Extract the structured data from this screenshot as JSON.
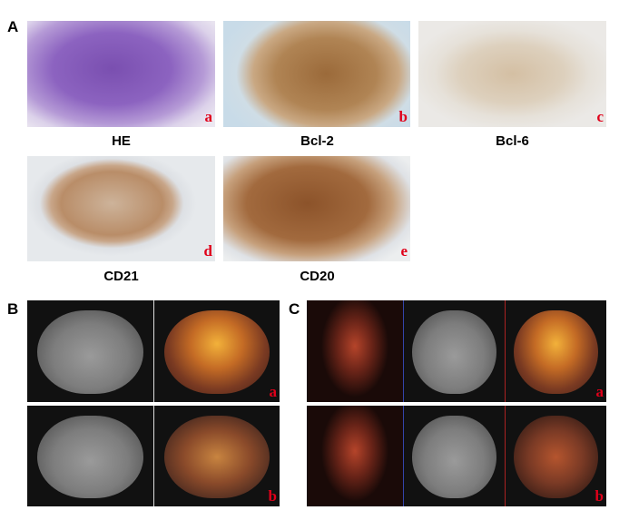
{
  "panels": {
    "A": {
      "label": "A",
      "images": [
        {
          "tag": "a",
          "caption": "HE"
        },
        {
          "tag": "b",
          "caption": "Bcl-2"
        },
        {
          "tag": "c",
          "caption": "Bcl-6"
        },
        {
          "tag": "d",
          "caption": "CD21"
        },
        {
          "tag": "e",
          "caption": "CD20"
        }
      ]
    },
    "B": {
      "label": "B",
      "rows": [
        {
          "tag": "a"
        },
        {
          "tag": "b"
        }
      ]
    },
    "C": {
      "label": "C",
      "rows": [
        {
          "tag": "a"
        },
        {
          "tag": "b"
        }
      ]
    }
  },
  "colors": {
    "tag": "#e0001a"
  }
}
